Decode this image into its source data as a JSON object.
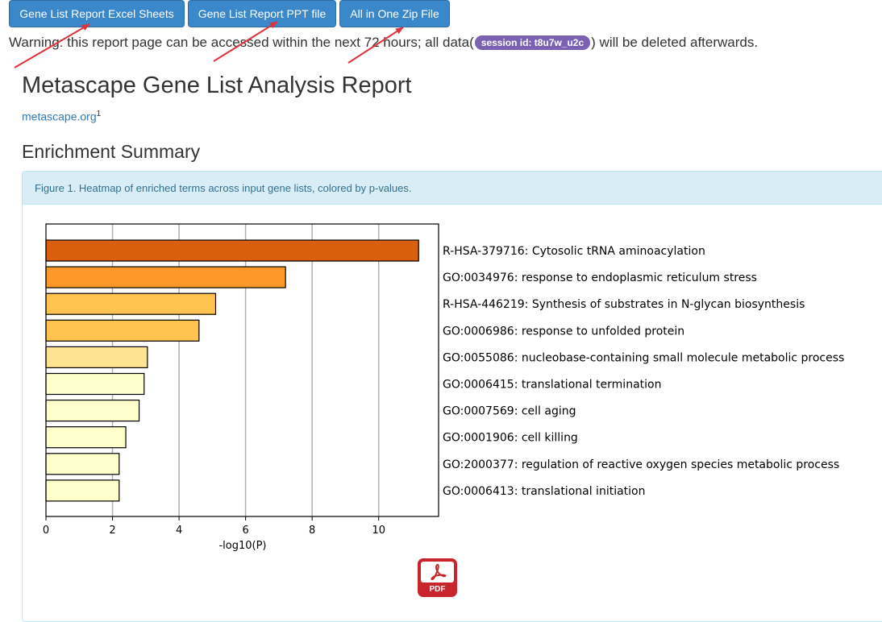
{
  "buttons": {
    "excel": "Gene List Report Excel Sheets",
    "ppt": "Gene List Report PPT file",
    "zip": "All in One Zip File"
  },
  "warning": {
    "prefix": "Warning: this report page can be accessed within the next 72 hours; all data(",
    "session_badge": "session id: t8u7w_u2c",
    "suffix": ") will be deleted afterwards."
  },
  "report": {
    "title": "Metascape Gene List Analysis Report",
    "site_link": "metascape.org",
    "site_link_sup": "1",
    "section_title": "Enrichment Summary",
    "figure_caption": "Figure 1. Heatmap of enriched terms across input gene lists, colored by p-values."
  },
  "pdf_icon": {
    "label": "PDF",
    "icon": "pdf-file-icon",
    "color": "#c8262c"
  },
  "annotation_color": "#e0323c",
  "chart_data": {
    "type": "bar",
    "orientation": "horizontal",
    "categories": [
      "R-HSA-379716: Cytosolic tRNA aminoacylation",
      "GO:0034976: response to endoplasmic reticulum stress",
      "R-HSA-446219: Synthesis of substrates in N-glycan biosynthesis",
      "GO:0006986: response to unfolded protein",
      "GO:0055086: nucleobase-containing small molecule metabolic process",
      "GO:0006415: translational termination",
      "GO:0007569: cell aging",
      "GO:0001906: cell killing",
      "GO:2000377: regulation of reactive oxygen species metabolic process",
      "GO:0006413: translational initiation"
    ],
    "values": [
      11.2,
      7.2,
      5.1,
      4.6,
      3.05,
      2.95,
      2.8,
      2.4,
      2.2,
      2.2
    ],
    "colors": [
      "#d95f0e",
      "#fe9929",
      "#fec44f",
      "#fec44f",
      "#fee391",
      "#ffffcc",
      "#ffffcc",
      "#ffffcc",
      "#ffffcc",
      "#ffffcc"
    ],
    "xlabel": "-log10(P)",
    "ylabel": "",
    "xlim": [
      0,
      11.8
    ],
    "xticks": [
      0,
      2,
      4,
      6,
      8,
      10
    ],
    "grid": "vertical"
  }
}
